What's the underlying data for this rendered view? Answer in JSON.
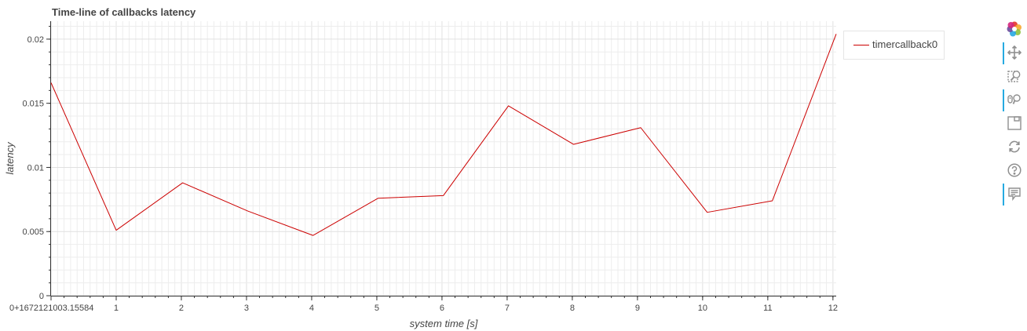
{
  "chart_data": {
    "type": "line",
    "title": "Time-line of callbacks latency",
    "xlabel": "system time [s]",
    "ylabel": "latency",
    "x_offset_label": "0+1672121003.15584",
    "xlim": [
      0,
      12.05
    ],
    "ylim": [
      0,
      0.0214
    ],
    "x_ticks": [
      {
        "value": 0,
        "label": "0+1672121003.15584"
      },
      {
        "value": 1,
        "label": "1"
      },
      {
        "value": 2,
        "label": "2"
      },
      {
        "value": 3,
        "label": "3"
      },
      {
        "value": 4,
        "label": "4"
      },
      {
        "value": 5,
        "label": "5"
      },
      {
        "value": 6,
        "label": "6"
      },
      {
        "value": 7,
        "label": "7"
      },
      {
        "value": 8,
        "label": "8"
      },
      {
        "value": 9,
        "label": "9"
      },
      {
        "value": 10,
        "label": "10"
      },
      {
        "value": 11,
        "label": "11"
      },
      {
        "value": 12,
        "label": "12"
      }
    ],
    "y_ticks": [
      {
        "value": 0,
        "label": "0"
      },
      {
        "value": 0.005,
        "label": "0.005"
      },
      {
        "value": 0.01,
        "label": "0.01"
      },
      {
        "value": 0.015,
        "label": "0.015"
      },
      {
        "value": 0.02,
        "label": "0.02"
      }
    ],
    "grid": true,
    "legend_position": "top-right outside",
    "series": [
      {
        "name": "timercallback0",
        "color": "#cc0000",
        "x": [
          0.0,
          1.0,
          2.02,
          3.02,
          4.02,
          5.02,
          6.02,
          7.02,
          8.02,
          9.05,
          10.07,
          11.07,
          12.05
        ],
        "y": [
          0.0166,
          0.0051,
          0.0088,
          0.0066,
          0.0047,
          0.0076,
          0.0078,
          0.0148,
          0.0118,
          0.0131,
          0.0065,
          0.0074,
          0.0204
        ]
      }
    ]
  },
  "toolbar": {
    "tools": [
      {
        "name": "bokeh-logo-icon"
      },
      {
        "name": "pan-icon",
        "active": true
      },
      {
        "name": "box-zoom-icon",
        "active": false
      },
      {
        "name": "wheel-zoom-icon",
        "active": true
      },
      {
        "name": "save-icon",
        "active": false
      },
      {
        "name": "reset-icon",
        "active": false
      },
      {
        "name": "help-icon",
        "active": false
      },
      {
        "name": "hover-icon",
        "active": true
      }
    ]
  }
}
